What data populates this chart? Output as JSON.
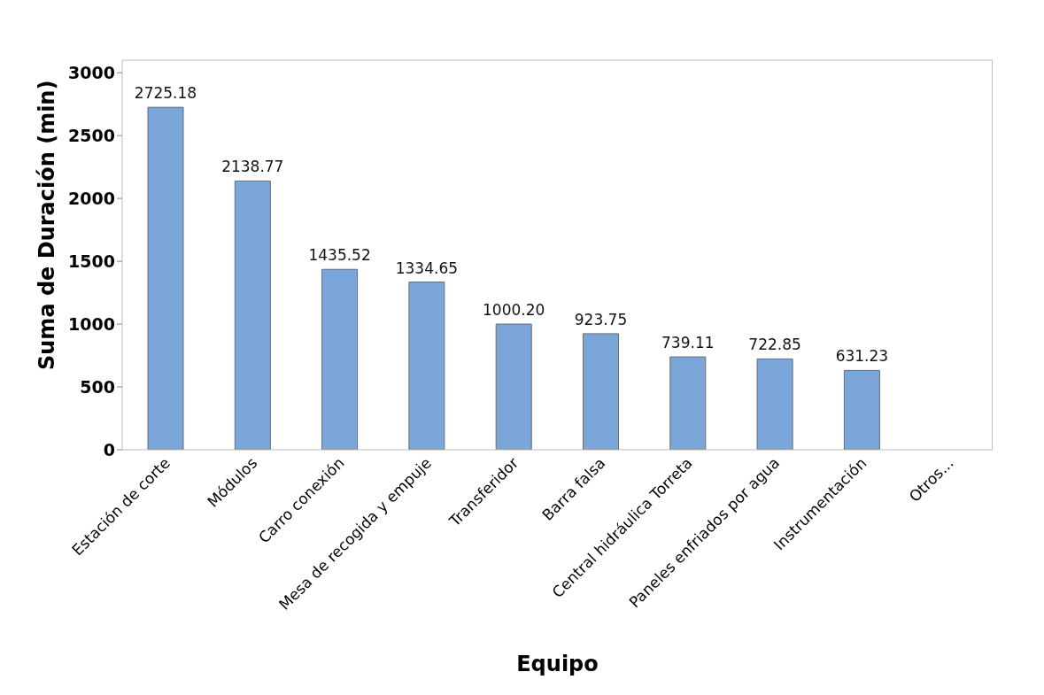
{
  "chart_data": {
    "type": "bar",
    "xlabel": "Equipo",
    "ylabel": "Suma de Duración (min)",
    "categories": [
      "Estación de corte",
      "Módulos",
      "Carro conexión",
      "Mesa de recogida y empuje",
      "Transferidor",
      "Barra falsa",
      "Central hidráulica Torreta",
      "Paneles enfriados por agua",
      "Instrumentación",
      "Otros..."
    ],
    "values": [
      2725.18,
      2138.77,
      1435.52,
      1334.65,
      1000.2,
      923.75,
      739.11,
      722.85,
      631.23,
      null
    ],
    "value_labels": [
      "2725.18",
      "2138.77",
      "1435.52",
      "1334.65",
      "1000.20",
      "923.75",
      "739.11",
      "722.85",
      "631.23",
      null
    ],
    "color": "#7ba6da",
    "ylim": [
      0,
      3100
    ],
    "yticks": [
      0,
      500,
      1000,
      1500,
      2000,
      2500,
      3000
    ],
    "grid": false
  }
}
